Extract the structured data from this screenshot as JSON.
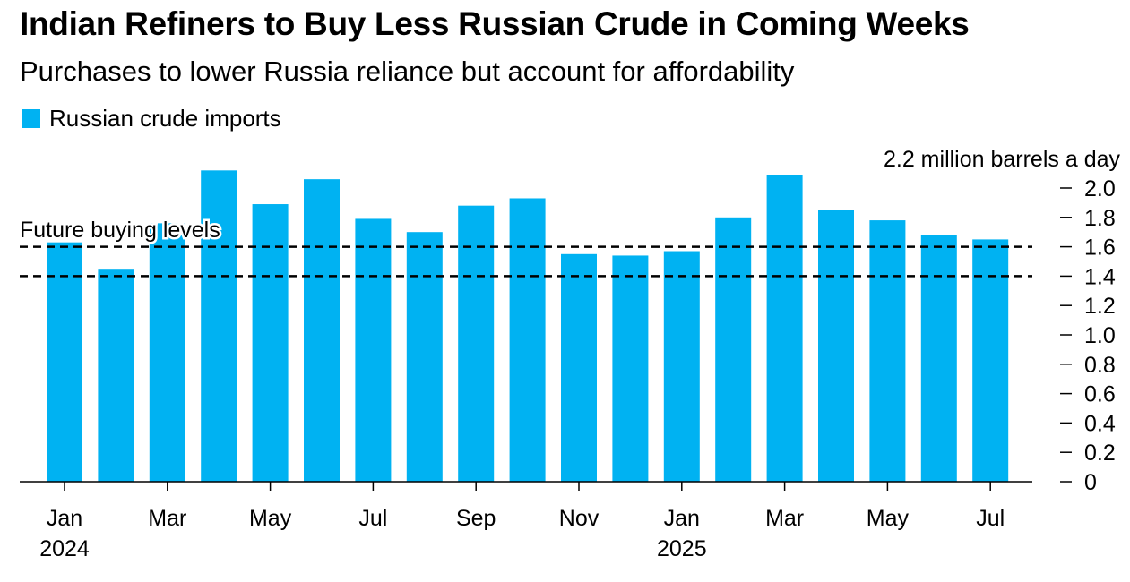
{
  "title": "Indian Refiners to Buy Less Russian Crude in Coming Weeks",
  "subtitle": "Purchases to lower Russia reliance but account for affordability",
  "colors": {
    "bar": "#00B2F2",
    "text": "#000000",
    "axis": "#000000"
  },
  "chart_data": {
    "type": "bar",
    "categories": [
      "Jan 2024",
      "Feb 2024",
      "Mar 2024",
      "Apr 2024",
      "May 2024",
      "Jun 2024",
      "Jul 2024",
      "Aug 2024",
      "Sep 2024",
      "Oct 2024",
      "Nov 2024",
      "Dec 2024",
      "Jan 2025",
      "Feb 2025",
      "Mar 2025",
      "Apr 2025",
      "May 2025",
      "Jun 2025",
      "Jul 2025"
    ],
    "series": [
      {
        "name": "Russian crude imports",
        "values": [
          1.63,
          1.45,
          1.76,
          2.12,
          1.89,
          2.06,
          1.79,
          1.7,
          1.88,
          1.93,
          1.55,
          1.54,
          1.57,
          1.8,
          2.09,
          1.85,
          1.78,
          1.68,
          1.65
        ]
      }
    ],
    "x_tick_labels": [
      {
        "index": 0,
        "label": "Jan"
      },
      {
        "index": 2,
        "label": "Mar"
      },
      {
        "index": 4,
        "label": "May"
      },
      {
        "index": 6,
        "label": "Jul"
      },
      {
        "index": 8,
        "label": "Sep"
      },
      {
        "index": 10,
        "label": "Nov"
      },
      {
        "index": 12,
        "label": "Jan"
      },
      {
        "index": 14,
        "label": "Mar"
      },
      {
        "index": 16,
        "label": "May"
      },
      {
        "index": 18,
        "label": "Jul"
      }
    ],
    "year_labels": [
      {
        "index": 0,
        "label": "2024"
      },
      {
        "index": 12,
        "label": "2025"
      }
    ],
    "y_ticks": [
      0,
      0.2,
      0.4,
      0.6,
      0.8,
      1.0,
      1.2,
      1.4,
      1.6,
      1.8,
      2.0
    ],
    "y_tick_labels": [
      "0",
      "0.2",
      "0.4",
      "0.6",
      "0.8",
      "1.0",
      "1.2",
      "1.4",
      "1.6",
      "1.8",
      "2.0"
    ],
    "y_top_label": "2.2 million barrels a day",
    "ylim": [
      0,
      2.2
    ],
    "y_axis_side": "right",
    "grid": false,
    "legend_placement": "top-left",
    "reference_lines": [
      {
        "value": 1.6,
        "style": "dashed"
      },
      {
        "value": 1.4,
        "style": "dashed"
      }
    ],
    "annotation": "Future buying levels"
  }
}
